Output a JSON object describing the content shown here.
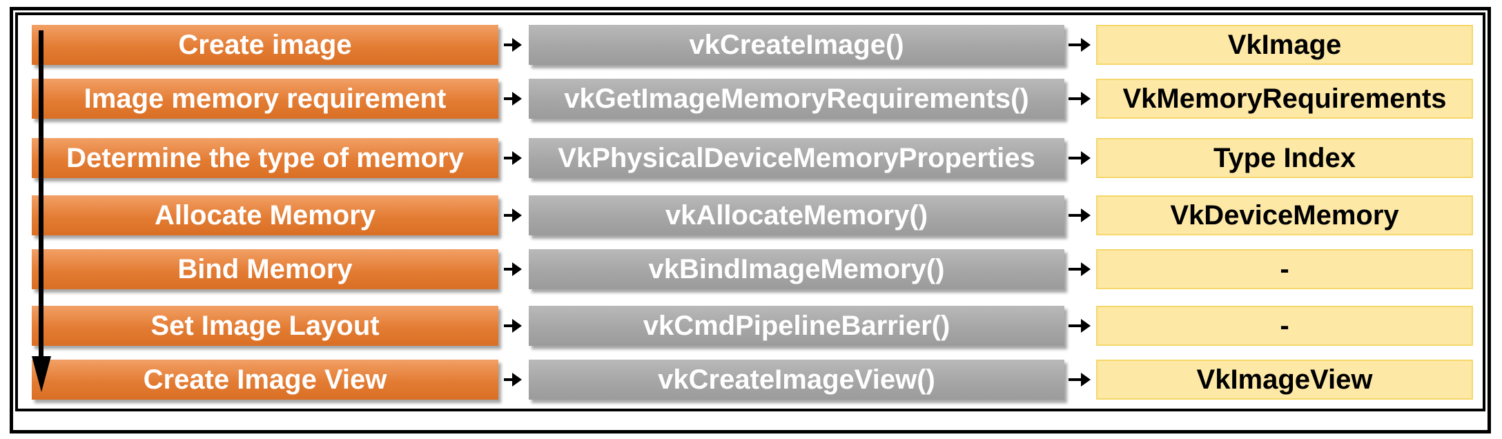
{
  "rows": [
    {
      "step": "Create image",
      "api": "vkCreateImage()",
      "result": "VkImage"
    },
    {
      "step": "Image memory requirement",
      "api": "vkGetImageMemoryRequirements()",
      "result": "VkMemoryRequirements"
    },
    {
      "step": "Determine the type of memory",
      "api": "VkPhysicalDeviceMemoryProperties",
      "result": "Type Index"
    },
    {
      "step": "Allocate Memory",
      "api": "vkAllocateMemory()",
      "result": "VkDeviceMemory"
    },
    {
      "step": "Bind Memory",
      "api": "vkBindImageMemory()",
      "result": "-"
    },
    {
      "step": "Set Image Layout",
      "api": "vkCmdPipelineBarrier()",
      "result": "-"
    },
    {
      "step": "Create Image View",
      "api": "vkCreateImageView()",
      "result": "VkImageView"
    }
  ],
  "colors": {
    "step_box": "#e37c33",
    "api_box": "#a6a6a6",
    "result_box": "#fde8a6",
    "result_border": "#f5d76a",
    "arrows": "#000000"
  }
}
